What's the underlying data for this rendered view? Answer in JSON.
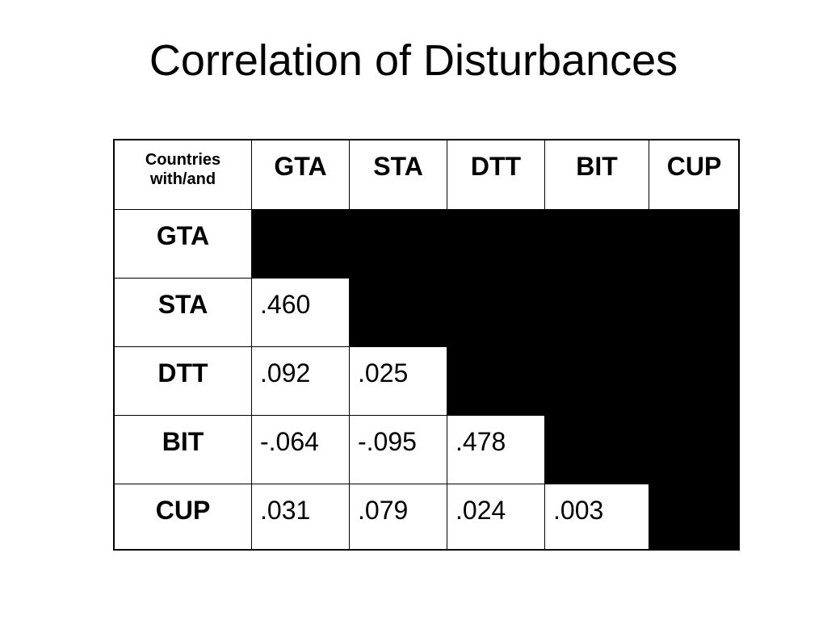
{
  "title": "Correlation of Disturbances",
  "table": {
    "corner": "Countries with/and",
    "columns": [
      "GTA",
      "STA",
      "DTT",
      "BIT",
      "CUP"
    ],
    "rows": [
      {
        "label": "GTA",
        "cells": []
      },
      {
        "label": "STA",
        "cells": [
          ".460"
        ]
      },
      {
        "label": "DTT",
        "cells": [
          ".092",
          ".025"
        ]
      },
      {
        "label": "BIT",
        "cells": [
          "-.064",
          "-.095",
          ".478"
        ]
      },
      {
        "label": "CUP",
        "cells": [
          ".031",
          ".079",
          ".024",
          ".003"
        ]
      }
    ]
  }
}
